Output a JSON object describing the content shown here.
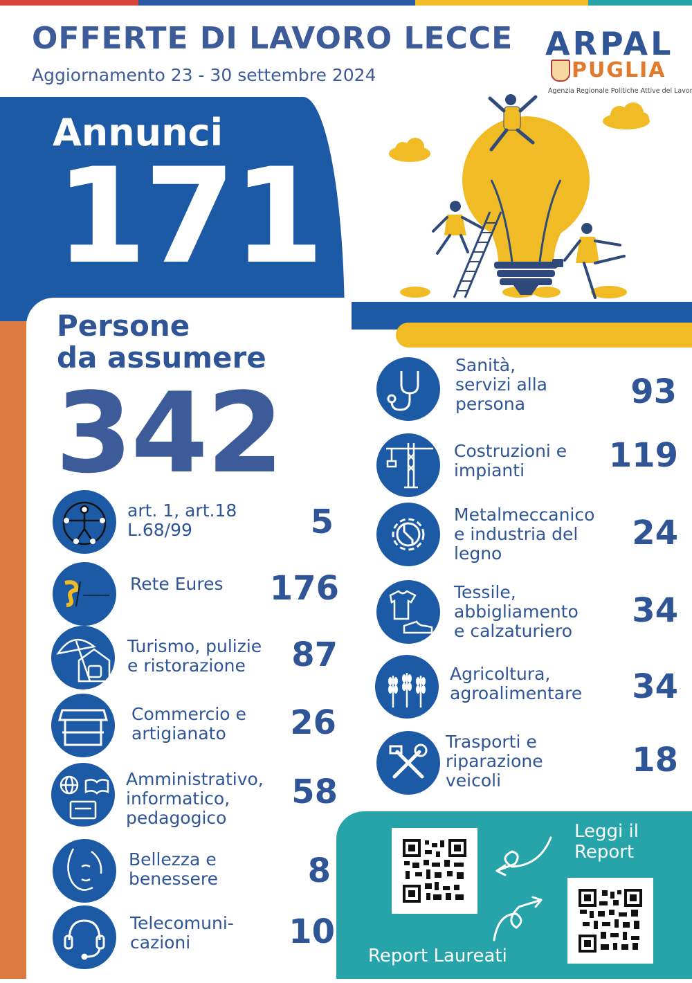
{
  "header": {
    "title": "OFFERTE DI LAVORO LECCE",
    "subtitle": "Aggiornamento 23 - 30 settembre 2024"
  },
  "logo": {
    "arpal": "ARPAL",
    "puglia": "PUGLIA",
    "tagline": "Agenzia Regionale Politiche Attive del Lavoro"
  },
  "annunci": {
    "label": "Annunci",
    "value": "171"
  },
  "persone": {
    "label_line1": "Persone",
    "label_line2": "da assumere",
    "value": "342"
  },
  "left_categories": [
    {
      "line1": "art. 1, art.18",
      "line2": "L.68/99",
      "line3": "",
      "value": "5",
      "icon": "accessibility-icon"
    },
    {
      "line1": "Rete Eures",
      "line2": "",
      "line3": "",
      "value": "176",
      "icon": "eures-logo-icon"
    },
    {
      "line1": "Turismo, pulizie",
      "line2": "e ristorazione",
      "line3": "",
      "value": "87",
      "icon": "beach-umbrella-icon"
    },
    {
      "line1": "Commercio e",
      "line2": "artigianato",
      "line3": "",
      "value": "26",
      "icon": "market-stall-icon"
    },
    {
      "line1": "Amministrativo,",
      "line2": "informatico,",
      "line3": "pedagogico",
      "value": "58",
      "icon": "globe-book-icon"
    },
    {
      "line1": "Bellezza e",
      "line2": "benessere",
      "line3": "",
      "value": "8",
      "icon": "face-icon"
    },
    {
      "line1": "Telecomuni-",
      "line2": "cazioni",
      "line3": "",
      "value": "10",
      "icon": "headset-icon"
    }
  ],
  "right_categories": [
    {
      "line1": "Sanità,",
      "line2": "servizi alla",
      "line3": "persona",
      "value": "93",
      "icon": "stethoscope-icon"
    },
    {
      "line1": "Costruzioni e",
      "line2": "impianti",
      "line3": "",
      "value": "119",
      "icon": "crane-icon"
    },
    {
      "line1": "Metalmeccanico",
      "line2": "e industria del",
      "line3": "legno",
      "value": "24",
      "icon": "gear-wrench-icon"
    },
    {
      "line1": "Tessile,",
      "line2": "abbigliamento",
      "line3": "e calzaturiero",
      "value": "34",
      "icon": "shirt-shoe-icon"
    },
    {
      "line1": "Agricoltura,",
      "line2": "agroalimentare",
      "line3": "",
      "value": "34",
      "icon": "wheat-icon"
    },
    {
      "line1": "Trasporti e",
      "line2": "riparazione",
      "line3": "veicoli",
      "value": "18",
      "icon": "tools-icon"
    }
  ],
  "reports": {
    "leggi_line1": "Leggi il",
    "leggi_line2": "Report",
    "laureati": "Report Laureati"
  },
  "colors": {
    "blue": "#1d5aa6",
    "navy_text": "#2f5596",
    "orange": "#dd7a3f",
    "yellow": "#f0bb25",
    "teal": "#27a4aa"
  }
}
